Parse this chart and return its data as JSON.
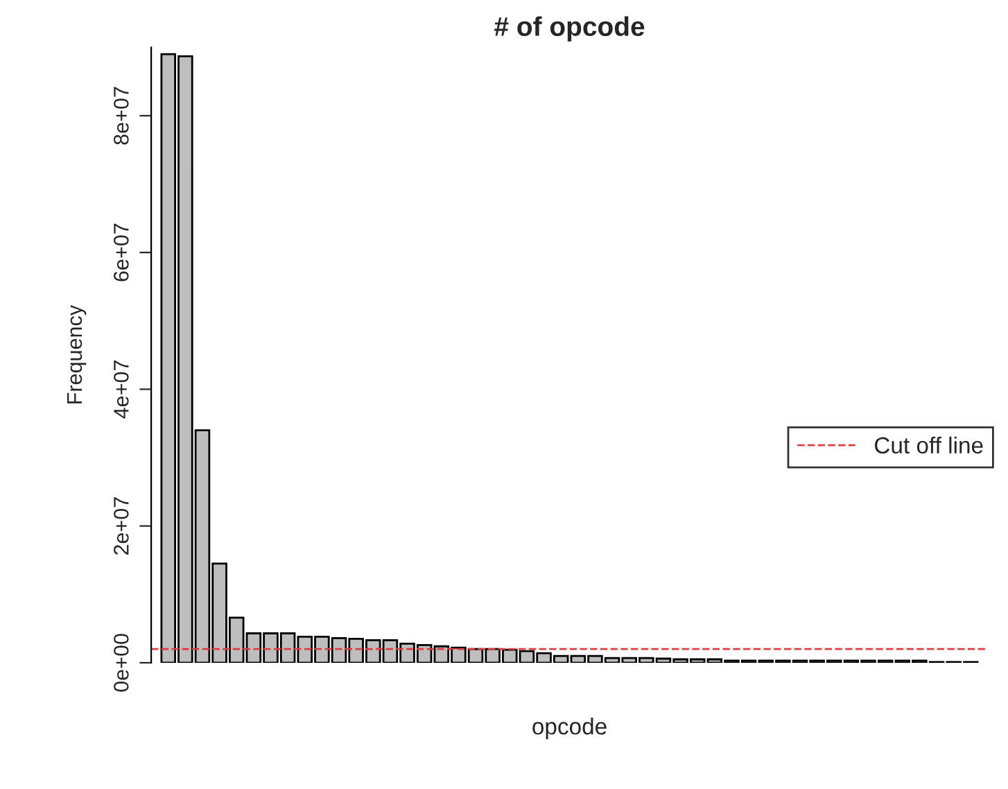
{
  "chart_data": {
    "type": "bar",
    "title": "# of opcode",
    "xlabel": "opcode",
    "ylabel": "Frequency",
    "categories": [
      null,
      null,
      null,
      null,
      null,
      null,
      null,
      null,
      null,
      null,
      null,
      null,
      null,
      null,
      null,
      null,
      null,
      null,
      null,
      null,
      null,
      null,
      null,
      null,
      null,
      null,
      null,
      null,
      null,
      null,
      null,
      null,
      null,
      null,
      null,
      null,
      null,
      null,
      null,
      null,
      null,
      null,
      null,
      null,
      null,
      null,
      null,
      null
    ],
    "values": [
      89000000,
      88700000,
      34000000,
      14500000,
      6600000,
      4300000,
      4300000,
      4300000,
      3800000,
      3800000,
      3600000,
      3500000,
      3300000,
      3300000,
      2800000,
      2600000,
      2400000,
      2200000,
      2000000,
      2000000,
      1900000,
      1700000,
      1400000,
      1000000,
      1000000,
      1000000,
      700000,
      700000,
      700000,
      600000,
      500000,
      500000,
      500000,
      300000,
      300000,
      300000,
      300000,
      300000,
      300000,
      300000,
      300000,
      300000,
      300000,
      300000,
      300000,
      100000,
      100000,
      100000
    ],
    "color": "#bebebe",
    "ylim": [
      0,
      90000000
    ],
    "yticks": [
      {
        "value": 0,
        "label": "0e+00"
      },
      {
        "value": 20000000,
        "label": "2e+07"
      },
      {
        "value": 40000000,
        "label": "4e+07"
      },
      {
        "value": 60000000,
        "label": "6e+07"
      },
      {
        "value": 80000000,
        "label": "8e+07"
      }
    ],
    "ref_lines": [
      {
        "axis": "y",
        "value": 2000000,
        "label": "Cut off line",
        "color": "#e03c3c",
        "line_style": "dashed"
      }
    ],
    "legend": "right",
    "grid": false
  }
}
